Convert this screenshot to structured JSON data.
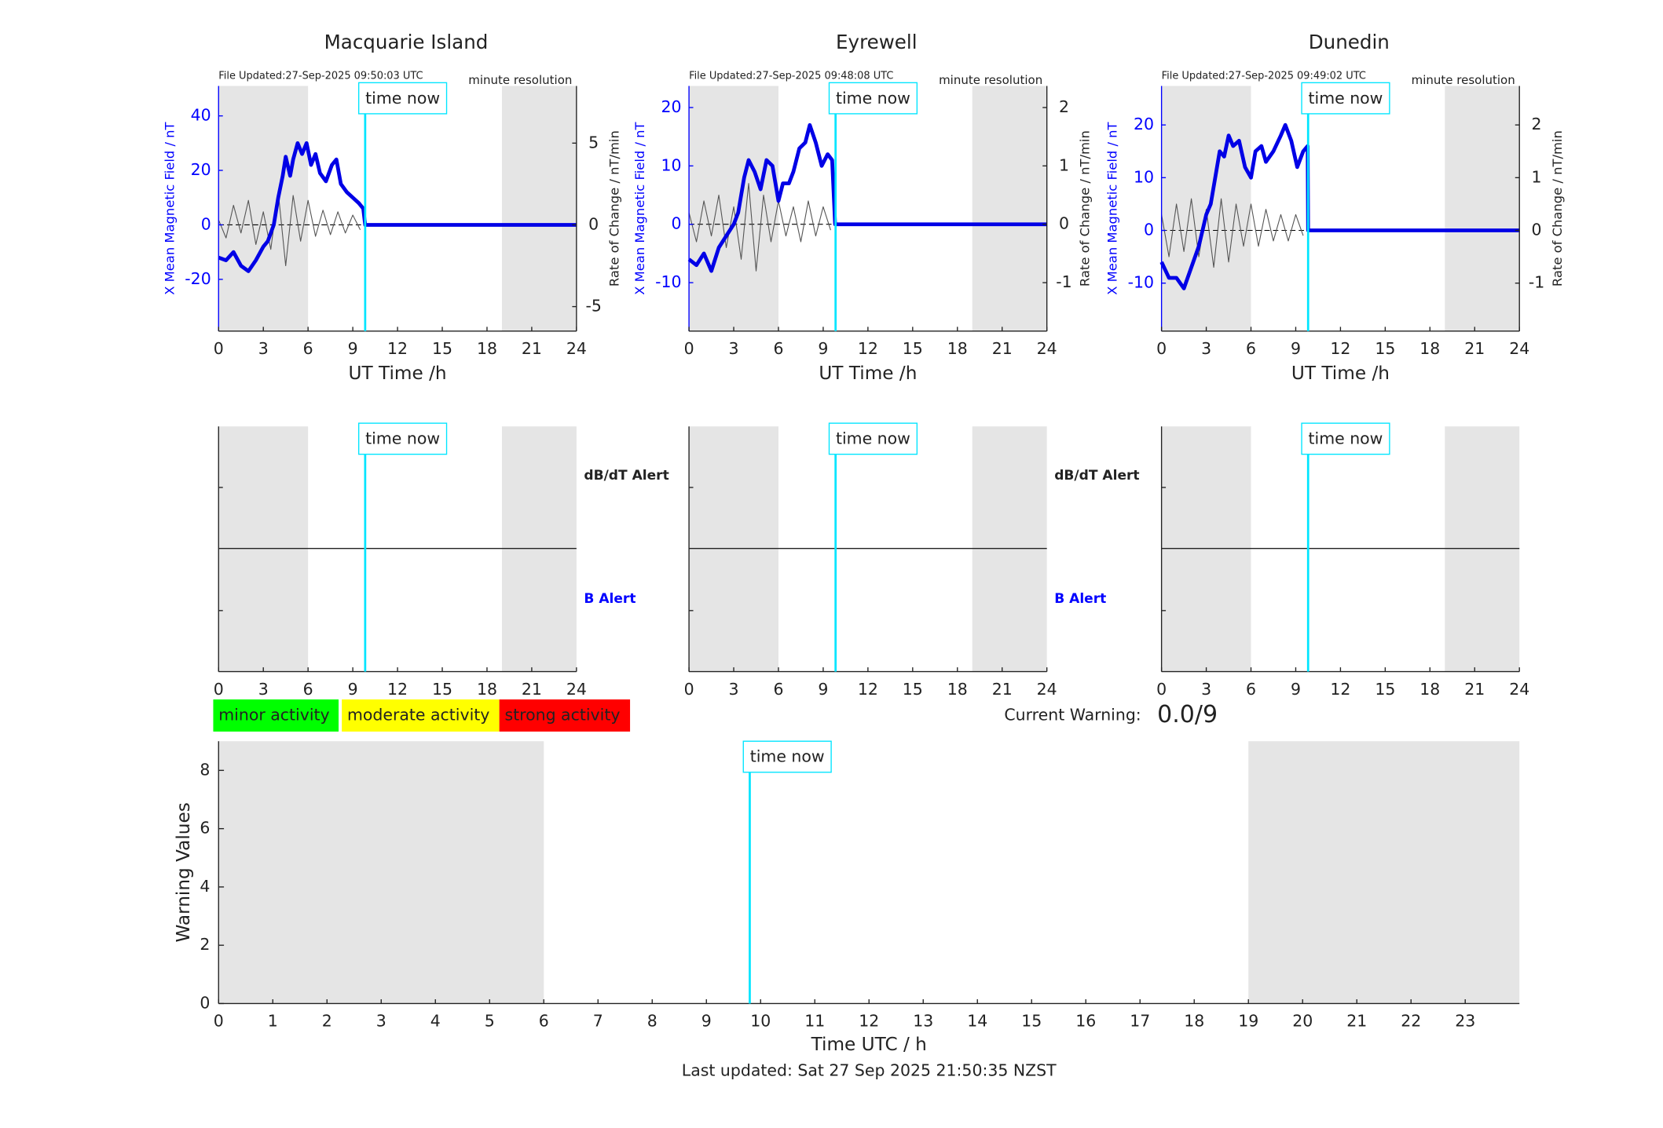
{
  "chart_data": [
    {
      "type": "magnetometer",
      "title": "Macquarie Island",
      "note_left": "File Updated:27-Sep-2025 09:50:03 UTC",
      "note_right": "minute resolution",
      "xlabel": "UT Time /h",
      "ylabel": "X Mean Magnetic Field / nT",
      "y2label": "Rate of Change / nT/min",
      "xlim": [
        0,
        24
      ],
      "xticks": [
        0,
        3,
        6,
        9,
        12,
        15,
        18,
        21,
        24
      ],
      "ylim": [
        -39,
        51
      ],
      "yticks": [
        -20,
        0,
        20,
        40
      ],
      "y2lim": [
        -6.5,
        8.5
      ],
      "y2ticks": [
        -5,
        0,
        5
      ],
      "shaded": [
        [
          0,
          6
        ],
        [
          19,
          24
        ]
      ],
      "marker": 9.83,
      "marker_label": "time now",
      "series": [
        {
          "color": "#555555",
          "axis": "y2",
          "x": [
            0,
            0.5,
            1,
            1.5,
            2,
            2.5,
            3,
            3.5,
            4,
            4.5,
            5,
            5.5,
            6,
            6.5,
            7,
            7.5,
            8,
            8.5,
            9,
            9.5
          ],
          "values": [
            0.3,
            -0.8,
            1.2,
            -0.5,
            1.5,
            -1.2,
            0.8,
            -1.5,
            2.0,
            -2.5,
            1.8,
            -1.0,
            1.5,
            -0.7,
            0.9,
            -0.6,
            0.8,
            -0.5,
            0.6,
            -0.3
          ]
        },
        {
          "color": "#0000e6",
          "x": [
            0,
            0.5,
            1,
            1.5,
            2,
            2.5,
            3,
            3.3,
            3.7,
            4,
            4.3,
            4.5,
            4.8,
            5,
            5.3,
            5.6,
            5.9,
            6.2,
            6.5,
            6.8,
            7.2,
            7.6,
            7.9,
            8.2,
            8.6,
            9,
            9.4,
            9.7,
            9.83,
            24
          ],
          "values": [
            -12,
            -13,
            -10,
            -15,
            -17,
            -13,
            -8,
            -6,
            0,
            10,
            18,
            25,
            18,
            24,
            30,
            26,
            30,
            22,
            26,
            19,
            16,
            22,
            24,
            15,
            12,
            10,
            8,
            6,
            0,
            0
          ]
        }
      ]
    },
    {
      "type": "magnetometer",
      "title": "Eyrewell",
      "note_left": "File Updated:27-Sep-2025 09:48:08 UTC",
      "note_right": "minute resolution",
      "xlabel": "UT Time /h",
      "ylabel": "X Mean Magnetic Field / nT",
      "y2label": "Rate of Change / nT/min",
      "xlim": [
        0,
        24
      ],
      "xticks": [
        0,
        3,
        6,
        9,
        12,
        15,
        18,
        21,
        24
      ],
      "ylim": [
        -18.3,
        23.7
      ],
      "yticks": [
        -10,
        0,
        10,
        20
      ],
      "y2lim": [
        -1.83,
        2.37
      ],
      "y2ticks": [
        -1,
        0,
        1,
        2
      ],
      "shaded": [
        [
          0,
          6
        ],
        [
          19,
          24
        ]
      ],
      "marker": 9.83,
      "marker_label": "time now",
      "series": [
        {
          "color": "#555555",
          "axis": "y2",
          "x": [
            0,
            0.5,
            1,
            1.5,
            2,
            2.5,
            3,
            3.5,
            4,
            4.5,
            5,
            5.5,
            6,
            6.5,
            7,
            7.5,
            8,
            8.5,
            9,
            9.5
          ],
          "values": [
            0.2,
            -0.3,
            0.4,
            -0.2,
            0.5,
            -0.4,
            0.3,
            -0.6,
            0.7,
            -0.8,
            0.5,
            -0.3,
            0.4,
            -0.2,
            0.3,
            -0.3,
            0.4,
            -0.2,
            0.3,
            -0.1
          ]
        },
        {
          "color": "#0000e6",
          "x": [
            0,
            0.5,
            1,
            1.5,
            2,
            2.5,
            3,
            3.3,
            3.7,
            4,
            4.4,
            4.8,
            5.2,
            5.6,
            6,
            6.3,
            6.7,
            7,
            7.4,
            7.8,
            8.1,
            8.5,
            8.9,
            9.3,
            9.6,
            9.8,
            24
          ],
          "values": [
            -6,
            -7,
            -5,
            -8,
            -4,
            -2,
            0,
            2,
            8,
            11,
            9,
            6,
            11,
            10,
            4,
            7,
            7,
            9,
            13,
            14,
            17,
            14,
            10,
            12,
            11,
            0,
            0
          ]
        }
      ]
    },
    {
      "type": "magnetometer",
      "title": "Dunedin",
      "note_left": "File Updated:27-Sep-2025 09:49:02 UTC",
      "note_right": "minute resolution",
      "xlabel": "UT Time /h",
      "ylabel": "X Mean Magnetic Field / nT",
      "y2label": "Rate of Change / nT/min",
      "xlim": [
        0,
        24
      ],
      "xticks": [
        0,
        3,
        6,
        9,
        12,
        15,
        18,
        21,
        24
      ],
      "ylim": [
        -19.1,
        27.4
      ],
      "yticks": [
        -10,
        0,
        10,
        20
      ],
      "y2lim": [
        -1.91,
        2.74
      ],
      "y2ticks": [
        -1,
        0,
        1,
        2
      ],
      "shaded": [
        [
          0,
          6
        ],
        [
          19,
          24
        ]
      ],
      "marker": 9.83,
      "marker_label": "time now",
      "series": [
        {
          "color": "#555555",
          "axis": "y2",
          "x": [
            0,
            0.5,
            1,
            1.5,
            2,
            2.5,
            3,
            3.5,
            4,
            4.5,
            5,
            5.5,
            6,
            6.5,
            7,
            7.5,
            8,
            8.5,
            9,
            9.5
          ],
          "values": [
            0.3,
            -0.5,
            0.5,
            -0.4,
            0.6,
            -0.5,
            0.4,
            -0.7,
            0.6,
            -0.6,
            0.5,
            -0.3,
            0.5,
            -0.3,
            0.4,
            -0.2,
            0.3,
            -0.2,
            0.3,
            -0.1
          ]
        },
        {
          "color": "#0000e6",
          "x": [
            0,
            0.5,
            1,
            1.5,
            2,
            2.5,
            3,
            3.3,
            3.6,
            3.9,
            4.2,
            4.5,
            4.8,
            5.2,
            5.6,
            6,
            6.3,
            6.7,
            7,
            7.5,
            8,
            8.3,
            8.7,
            9.1,
            9.5,
            9.8,
            9.83,
            24
          ],
          "values": [
            -6,
            -9,
            -9,
            -11,
            -7,
            -3,
            3,
            5,
            10,
            15,
            14,
            18,
            16,
            17,
            12,
            10,
            15,
            16,
            13,
            15,
            18,
            20,
            17,
            12,
            15,
            16,
            0,
            0
          ]
        }
      ]
    },
    {
      "type": "alert",
      "xlim": [
        0,
        24
      ],
      "xticks": [
        0,
        3,
        6,
        9,
        12,
        15,
        18,
        21,
        24
      ],
      "shaded": [
        [
          0,
          6
        ],
        [
          19,
          24
        ]
      ],
      "marker": 9.83,
      "marker_label": "time now",
      "label_top": "dB/dT Alert",
      "label_bottom": "B Alert"
    },
    {
      "type": "alert",
      "xlim": [
        0,
        24
      ],
      "xticks": [
        0,
        3,
        6,
        9,
        12,
        15,
        18,
        21,
        24
      ],
      "shaded": [
        [
          0,
          6
        ],
        [
          19,
          24
        ]
      ],
      "marker": 9.83,
      "marker_label": "time now",
      "label_top": "dB/dT Alert",
      "label_bottom": "B Alert"
    },
    {
      "type": "alert",
      "xlim": [
        0,
        24
      ],
      "xticks": [
        0,
        3,
        6,
        9,
        12,
        15,
        18,
        21,
        24
      ],
      "shaded": [
        [
          0,
          6
        ],
        [
          19,
          24
        ]
      ],
      "marker": 9.83,
      "marker_label": "time now"
    },
    {
      "type": "warning",
      "ylabel": "Warning Values",
      "xlabel": "Time UTC / h",
      "footer": "Last updated: Sat 27 Sep 2025 21:50:35 NZST",
      "xlim": [
        0,
        24
      ],
      "xticks": [
        0,
        1,
        2,
        3,
        4,
        5,
        6,
        7,
        8,
        9,
        10,
        11,
        12,
        13,
        14,
        15,
        16,
        17,
        18,
        19,
        20,
        21,
        22,
        23
      ],
      "ylim": [
        0,
        9
      ],
      "yticks": [
        0,
        2,
        4,
        6,
        8
      ],
      "shaded": [
        [
          0,
          6
        ],
        [
          19,
          24
        ]
      ],
      "marker": 9.8,
      "marker_label": "time now",
      "legend": [
        {
          "name": "minor activity",
          "color": "#00ff00"
        },
        {
          "name": "moderate activity",
          "color": "#ffff00"
        },
        {
          "name": "strong activity",
          "color": "#ff0000"
        }
      ],
      "current_warning_label": "Current Warning:",
      "current_warning": "0.0/9"
    }
  ]
}
